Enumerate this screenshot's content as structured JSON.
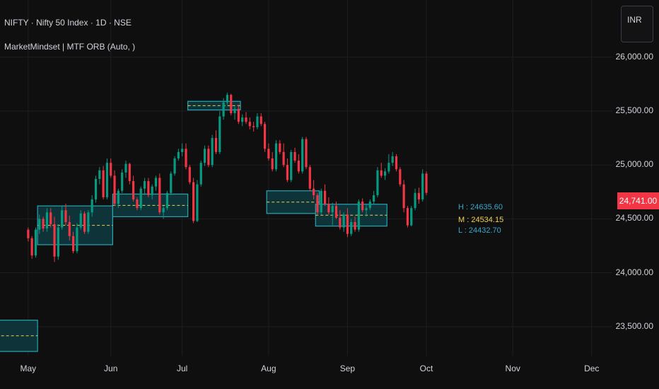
{
  "legend": {
    "title": "NIFTY · Nifty 50 Index · 1D · NSE",
    "indicator": "MarketMindset | MTF ORB (Auto, )"
  },
  "currency_button": "INR",
  "last_price_badge": "24,741.00",
  "orb_labels": {
    "high": "H : 24635.60",
    "mid": "M : 24534.15",
    "low": "L : 24432.70"
  },
  "colors": {
    "background": "#0f0f0f",
    "up_candle": "#089981",
    "down_candle": "#f23645",
    "orb_box_fill": "#0e3a3f",
    "orb_box_border": "#26a7b5",
    "orb_mid_line": "#f0d050",
    "label_high_low": "#3aa6c9",
    "label_mid": "#f0d050",
    "grid": "#1e1f24"
  },
  "chart_data": {
    "type": "candlestick",
    "title": "NIFTY · Nifty 50 Index · 1D · NSE",
    "y_ticks": [
      "26,000.00",
      "25,500.00",
      "25,000.00",
      "24,500.00",
      "24,000.00",
      "23,500.00"
    ],
    "y_tick_values": [
      26000,
      25500,
      25000,
      24500,
      24000,
      23500
    ],
    "ylim": [
      23230,
      26530
    ],
    "x_ticks": [
      "May",
      "Jun",
      "Jul",
      "Aug",
      "Sep",
      "Oct",
      "Nov",
      "Dec"
    ],
    "x_tick_index": [
      0,
      22,
      41,
      64,
      85,
      106,
      129,
      150
    ],
    "x_index_range": [
      -7.5,
      155.5
    ],
    "grid": true,
    "last_price": 24741.0,
    "candles": [
      [
        24400,
        24420,
        24290,
        24320
      ],
      [
        24320,
        24340,
        24130,
        24160
      ],
      [
        24160,
        24420,
        24140,
        24400
      ],
      [
        24400,
        24540,
        24360,
        24500
      ],
      [
        24500,
        24520,
        24380,
        24410
      ],
      [
        24410,
        24600,
        24380,
        24560
      ],
      [
        24560,
        24600,
        24420,
        24450
      ],
      [
        24450,
        24520,
        24100,
        24150
      ],
      [
        24150,
        24450,
        24120,
        24420
      ],
      [
        24420,
        24620,
        24400,
        24580
      ],
      [
        24580,
        24640,
        24440,
        24470
      ],
      [
        24470,
        24530,
        24300,
        24340
      ],
      [
        24340,
        24380,
        24180,
        24200
      ],
      [
        24200,
        24460,
        24180,
        24420
      ],
      [
        24420,
        24580,
        24400,
        24550
      ],
      [
        24550,
        24570,
        24360,
        24380
      ],
      [
        24380,
        24580,
        24360,
        24560
      ],
      [
        24560,
        24720,
        24520,
        24680
      ],
      [
        24680,
        24900,
        24650,
        24870
      ],
      [
        24870,
        24980,
        24820,
        24950
      ],
      [
        24950,
        24990,
        24680,
        24700
      ],
      [
        24700,
        25060,
        24680,
        25020
      ],
      [
        25020,
        25060,
        24880,
        24900
      ],
      [
        24900,
        24950,
        24620,
        24640
      ],
      [
        24640,
        24780,
        24600,
        24760
      ],
      [
        24760,
        24960,
        24740,
        24930
      ],
      [
        24930,
        25040,
        24880,
        25010
      ],
      [
        25010,
        25020,
        24820,
        24850
      ],
      [
        24850,
        24900,
        24660,
        24680
      ],
      [
        24680,
        24700,
        24580,
        24600
      ],
      [
        24600,
        24800,
        24580,
        24780
      ],
      [
        24780,
        24880,
        24720,
        24850
      ],
      [
        24850,
        24880,
        24700,
        24720
      ],
      [
        24720,
        24820,
        24680,
        24800
      ],
      [
        24800,
        24900,
        24760,
        24880
      ],
      [
        24880,
        24920,
        24540,
        24560
      ],
      [
        24560,
        24620,
        24500,
        24600
      ],
      [
        24600,
        24760,
        24580,
        24740
      ],
      [
        24740,
        24940,
        24720,
        24920
      ],
      [
        24920,
        25080,
        24900,
        25060
      ],
      [
        25060,
        25150,
        25040,
        25120
      ],
      [
        25120,
        25200,
        25080,
        25150
      ],
      [
        25150,
        25200,
        24960,
        24980
      ],
      [
        24980,
        25000,
        24820,
        24840
      ],
      [
        24840,
        24880,
        24460,
        24480
      ],
      [
        24480,
        24860,
        24470,
        24820
      ],
      [
        24820,
        25040,
        24800,
        25020
      ],
      [
        25020,
        25180,
        24990,
        25150
      ],
      [
        25150,
        25180,
        24980,
        25000
      ],
      [
        25000,
        25280,
        24980,
        25250
      ],
      [
        25250,
        25320,
        25100,
        25120
      ],
      [
        25120,
        25500,
        25100,
        25450
      ],
      [
        25450,
        25620,
        25420,
        25580
      ],
      [
        25580,
        25670,
        25560,
        25650
      ],
      [
        25650,
        25660,
        25460,
        25480
      ],
      [
        25480,
        25540,
        25420,
        25520
      ],
      [
        25520,
        25560,
        25380,
        25400
      ],
      [
        25400,
        25470,
        25360,
        25440
      ],
      [
        25440,
        25490,
        25380,
        25400
      ],
      [
        25400,
        25440,
        25330,
        25360
      ],
      [
        25360,
        25400,
        25310,
        25350
      ],
      [
        25350,
        25480,
        25330,
        25450
      ],
      [
        25450,
        25480,
        25360,
        25380
      ],
      [
        25380,
        25400,
        25120,
        25150
      ],
      [
        25150,
        25200,
        25040,
        25060
      ],
      [
        25060,
        25120,
        24940,
        24960
      ],
      [
        24960,
        25230,
        24940,
        25200
      ],
      [
        25200,
        25230,
        25100,
        25120
      ],
      [
        25120,
        25200,
        24980,
        25000
      ],
      [
        25000,
        25060,
        24840,
        24860
      ],
      [
        24860,
        25140,
        24840,
        25120
      ],
      [
        25120,
        25160,
        25020,
        25040
      ],
      [
        25040,
        25100,
        24920,
        24940
      ],
      [
        24940,
        25260,
        24920,
        25240
      ],
      [
        25240,
        25260,
        24960,
        24980
      ],
      [
        24980,
        25000,
        24760,
        24780
      ],
      [
        24780,
        24860,
        24680,
        24720
      ],
      [
        24720,
        24740,
        24540,
        24560
      ],
      [
        24560,
        24780,
        24540,
        24760
      ],
      [
        24760,
        24820,
        24620,
        24640
      ],
      [
        24640,
        24700,
        24540,
        24560
      ],
      [
        24560,
        24650,
        24440,
        24620
      ],
      [
        24620,
        24660,
        24500,
        24510
      ],
      [
        24510,
        24580,
        24400,
        24420
      ],
      [
        24420,
        24560,
        24380,
        24540
      ],
      [
        24540,
        24600,
        24330,
        24360
      ],
      [
        24360,
        24500,
        24340,
        24470
      ],
      [
        24470,
        24520,
        24380,
        24400
      ],
      [
        24400,
        24680,
        24380,
        24660
      ],
      [
        24660,
        24690,
        24560,
        24580
      ],
      [
        24580,
        24640,
        24520,
        24600
      ],
      [
        24600,
        24680,
        24580,
        24660
      ],
      [
        24660,
        24760,
        24640,
        24720
      ],
      [
        24720,
        24980,
        24700,
        24950
      ],
      [
        24950,
        25020,
        24880,
        24900
      ],
      [
        24900,
        24970,
        24860,
        24940
      ],
      [
        24940,
        25100,
        24920,
        25020
      ],
      [
        25020,
        25120,
        24990,
        25080
      ],
      [
        25080,
        25100,
        24940,
        24960
      ],
      [
        24960,
        24980,
        24800,
        24820
      ],
      [
        24820,
        24860,
        24560,
        24600
      ],
      [
        24600,
        24620,
        24420,
        24440
      ],
      [
        24440,
        24620,
        24430,
        24600
      ],
      [
        24600,
        24780,
        24580,
        24740
      ],
      [
        24740,
        24790,
        24640,
        24680
      ],
      [
        24680,
        24960,
        24660,
        24920
      ],
      [
        24920,
        24940,
        24720,
        24741
      ]
    ],
    "orb_boxes": [
      {
        "start": -8,
        "end": 2,
        "high": 23560,
        "low": 23270,
        "mid": 23415
      },
      {
        "start": 3,
        "end": 22,
        "high": 24620,
        "low": 24260,
        "mid": 24440
      },
      {
        "start": 23,
        "end": 42,
        "high": 24730,
        "low": 24520,
        "mid": 24625
      },
      {
        "start": 43,
        "end": 56,
        "high": 25590,
        "low": 25510,
        "mid": 25550
      },
      {
        "start": 64,
        "end": 77,
        "high": 24760,
        "low": 24550,
        "mid": 24655
      },
      {
        "start": 77,
        "end": 95,
        "high": 24635.6,
        "low": 24432.7,
        "mid": 24534.15
      }
    ]
  }
}
